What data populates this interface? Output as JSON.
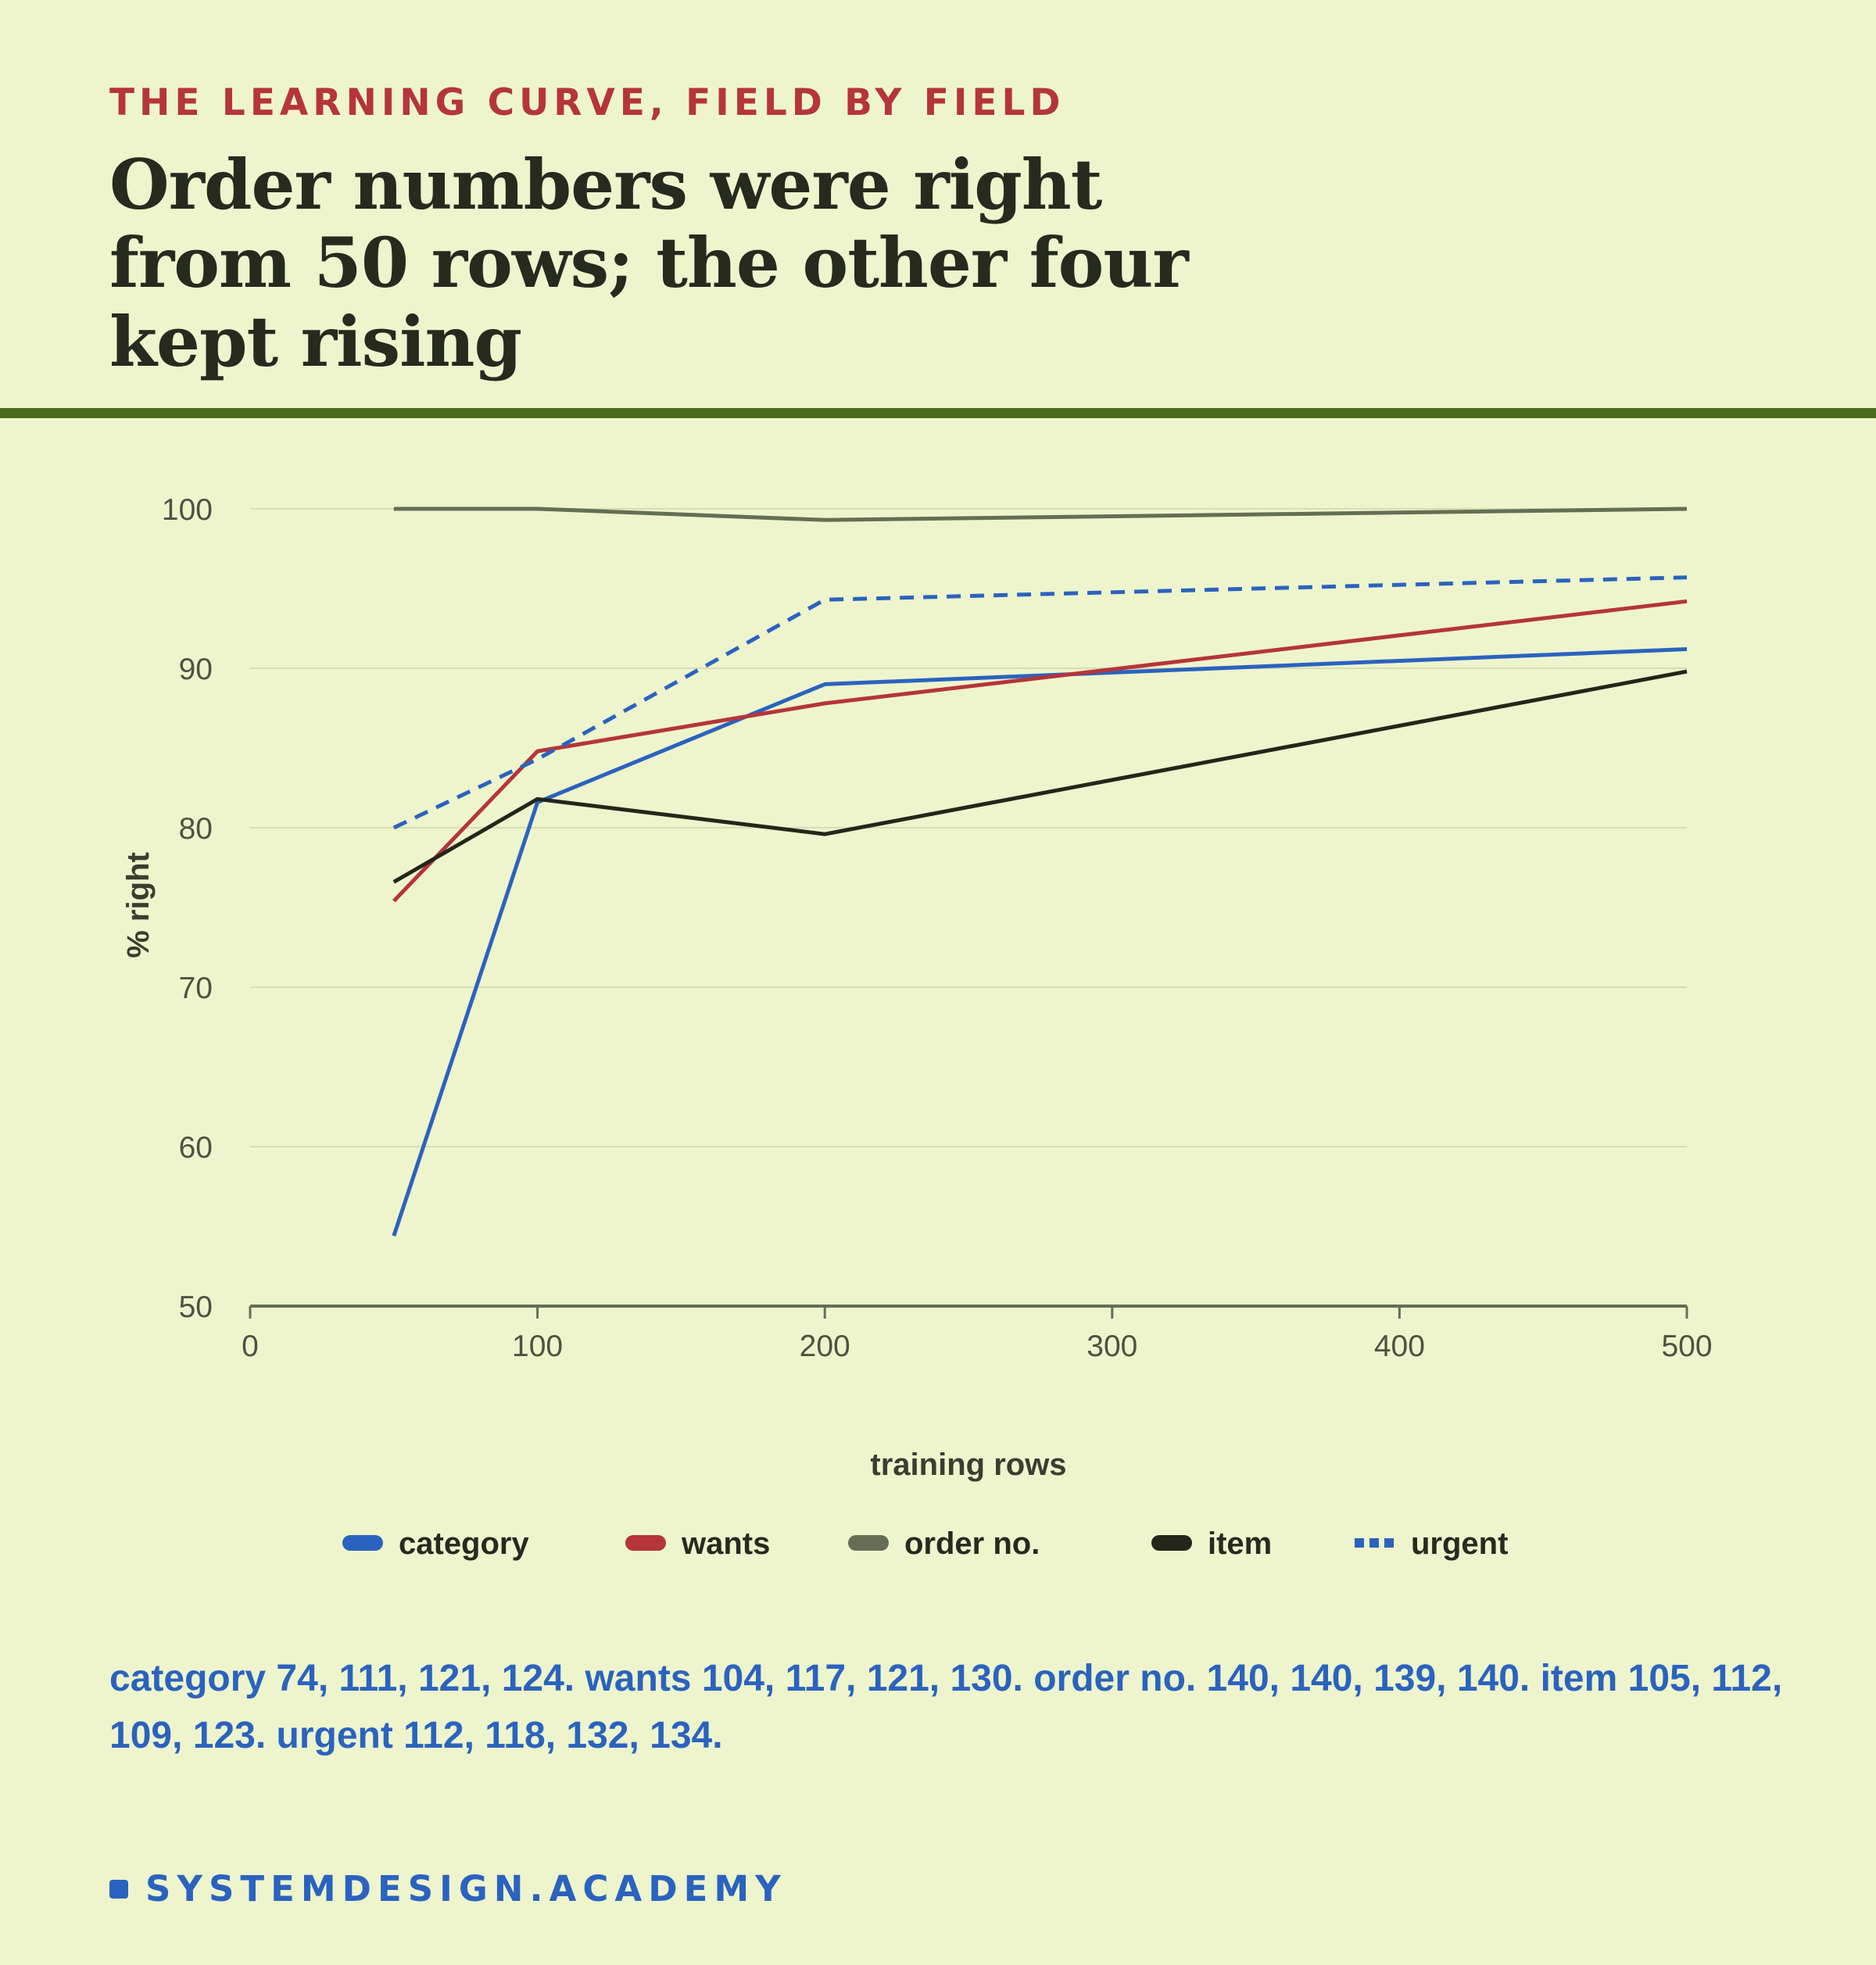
{
  "header": {
    "kicker": "THE LEARNING CURVE, FIELD BY FIELD",
    "headline": "Order numbers were right from 50 rows; the other four kept rising"
  },
  "chart_data": {
    "type": "line",
    "xlabel": "training rows",
    "ylabel": "% right",
    "xlim": [
      0,
      500
    ],
    "ylim": [
      50,
      100
    ],
    "x_ticks": [
      "0",
      "100",
      "200",
      "300",
      "400",
      "500"
    ],
    "y_ticks": [
      "50",
      "60",
      "70",
      "80",
      "90",
      "100"
    ],
    "grid": "horizontal",
    "legend_position": "bottom",
    "x": [
      50,
      100,
      200,
      500
    ],
    "series": [
      {
        "name": "category",
        "values": [
          54.4,
          81.6,
          89.0,
          91.2
        ],
        "color": "#2a63bf",
        "dash": "solid"
      },
      {
        "name": "wants",
        "values": [
          75.4,
          84.8,
          87.8,
          94.2
        ],
        "color": "#b5353a",
        "dash": "solid"
      },
      {
        "name": "order no.",
        "values": [
          100.0,
          100.0,
          99.3,
          100.0
        ],
        "color": "#656e55",
        "dash": "solid"
      },
      {
        "name": "item",
        "values": [
          76.6,
          81.8,
          79.6,
          89.8
        ],
        "color": "#232619",
        "dash": "solid"
      },
      {
        "name": "urgent",
        "values": [
          80.0,
          84.3,
          94.3,
          95.7
        ],
        "color": "#2a63bf",
        "dash": "dashed"
      }
    ]
  },
  "footnote": "category 74, 111, 121, 124. wants 104, 117, 121, 130. order no. 140, 140, 139, 140. item 105, 112, 109, 123. urgent 112, 118, 132, 134.",
  "brand": {
    "name": "SYSTEMDESIGN.ACADEMY",
    "color": "#2a63bf"
  }
}
